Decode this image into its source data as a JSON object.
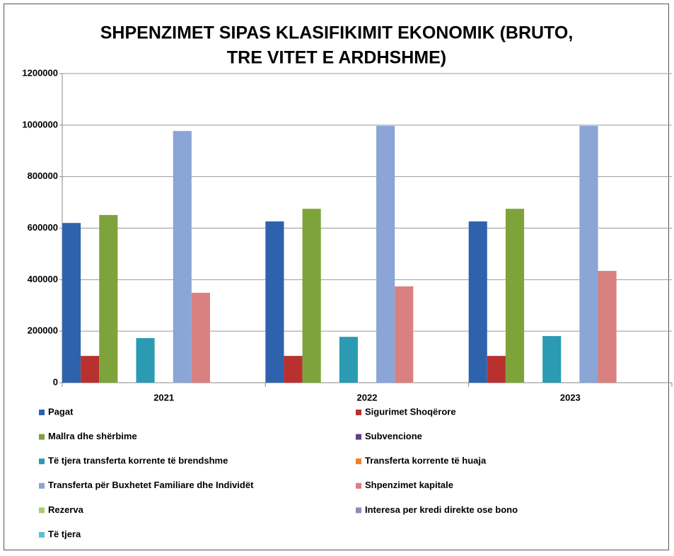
{
  "chart_data": {
    "type": "bar",
    "title": [
      "SHPENZIMET SIPAS KLASIFIKIMIT EKONOMIK (BRUTO,",
      "TRE VITET E ARDHSHME)"
    ],
    "categories": [
      "2021",
      "2022",
      "2023"
    ],
    "series": [
      {
        "name": "Pagat",
        "color": "#2f62ad",
        "values": [
          620000,
          626000,
          626000
        ]
      },
      {
        "name": "Sigurimet Shoqërore",
        "color": "#b8312f",
        "values": [
          104000,
          104000,
          104000
        ]
      },
      {
        "name": "Mallra dhe shërbime",
        "color": "#7ea33b",
        "values": [
          651000,
          675000,
          675000
        ]
      },
      {
        "name": "Subvencione",
        "color": "#5f3f8c",
        "values": [
          0,
          0,
          0
        ]
      },
      {
        "name": "Të tjera transferta korrente të brendshme",
        "color": "#2a9bb3",
        "values": [
          173000,
          178000,
          181000
        ]
      },
      {
        "name": "Transferta korrente të huaja",
        "color": "#f07e1f",
        "values": [
          0,
          0,
          0
        ]
      },
      {
        "name": "Transferta për Buxhetet Familiare dhe Individët",
        "color": "#8aa5d6",
        "values": [
          977000,
          997000,
          997000
        ]
      },
      {
        "name": "Shpenzimet kapitale",
        "color": "#d98080",
        "values": [
          349000,
          374000,
          434000
        ]
      },
      {
        "name": "Rezerva",
        "color": "#a6cf6e",
        "values": [
          0,
          0,
          0
        ]
      },
      {
        "name": "Interesa per kredi direkte ose bono",
        "color": "#9a86b8",
        "values": [
          0,
          0,
          0
        ]
      },
      {
        "name": "Të tjera",
        "color": "#65bcd6",
        "values": [
          0,
          0,
          0
        ]
      }
    ],
    "ylim": [
      0,
      1200000
    ],
    "yticks": [
      0,
      200000,
      400000,
      600000,
      800000,
      1000000,
      1200000
    ],
    "grid": true,
    "legend": "bottom"
  }
}
